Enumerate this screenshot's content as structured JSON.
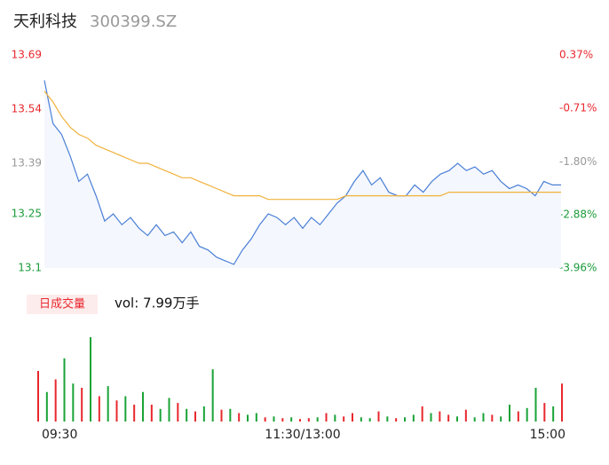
{
  "header": {
    "name": "天利科技",
    "code": "300399.SZ"
  },
  "chart_data": [
    {
      "type": "line",
      "x": [
        0,
        4,
        8,
        12,
        16,
        20,
        24,
        28,
        32,
        36,
        40,
        44,
        48,
        52,
        56,
        60,
        64,
        68,
        72,
        76,
        80,
        84,
        88,
        92,
        96,
        100,
        104,
        108,
        112,
        116,
        120,
        124,
        128,
        132,
        136,
        140,
        144,
        148,
        152,
        156,
        160,
        164,
        168,
        172,
        176,
        180,
        184,
        188,
        192,
        196,
        200,
        204,
        208,
        212,
        216,
        220,
        224,
        228,
        232,
        236,
        240
      ],
      "xlim": [
        0,
        240
      ],
      "xticks": [
        {
          "value": 0,
          "label": "09:30"
        },
        {
          "value": 120,
          "label": "11:30/13:00"
        },
        {
          "value": 240,
          "label": "15:00"
        }
      ],
      "ylim": [
        13.1,
        13.69
      ],
      "yticks": [
        13.69,
        13.54,
        13.39,
        13.25,
        13.1
      ],
      "ytick_colors": [
        "#e8282e",
        "#e8282e",
        "#999999",
        "#1a9b3a",
        "#1a9b3a"
      ],
      "y2lim": [
        -3.96,
        0.37
      ],
      "y2ticks": [
        {
          "value": 0.37,
          "label": "0.37%"
        },
        {
          "value": -0.71,
          "label": "-0.71%"
        },
        {
          "value": -1.8,
          "label": "-1.80%"
        },
        {
          "value": -2.88,
          "label": "-2.88%"
        },
        {
          "value": -3.96,
          "label": "-3.96%"
        }
      ],
      "y2tick_colors": [
        "#e8282e",
        "#e8282e",
        "#999999",
        "#1a9b3a",
        "#1a9b3a"
      ],
      "series": [
        {
          "color": "#4a7fd6",
          "area": "#f4f7fd",
          "values": [
            13.62,
            13.5,
            13.47,
            13.41,
            13.34,
            13.36,
            13.3,
            13.23,
            13.25,
            13.22,
            13.24,
            13.21,
            13.19,
            13.22,
            13.19,
            13.2,
            13.17,
            13.2,
            13.16,
            13.15,
            13.13,
            13.12,
            13.11,
            13.15,
            13.18,
            13.22,
            13.25,
            13.24,
            13.22,
            13.24,
            13.21,
            13.24,
            13.22,
            13.25,
            13.28,
            13.3,
            13.34,
            13.37,
            13.33,
            13.35,
            13.31,
            13.3,
            13.3,
            13.33,
            13.31,
            13.34,
            13.36,
            13.37,
            13.39,
            13.37,
            13.38,
            13.36,
            13.37,
            13.34,
            13.32,
            13.33,
            13.32,
            13.3,
            13.34,
            13.33,
            13.33
          ]
        },
        {
          "color": "#f0b23c",
          "values": [
            13.59,
            13.56,
            13.52,
            13.49,
            13.47,
            13.46,
            13.44,
            13.43,
            13.42,
            13.41,
            13.4,
            13.39,
            13.39,
            13.38,
            13.37,
            13.36,
            13.35,
            13.35,
            13.34,
            13.33,
            13.32,
            13.31,
            13.3,
            13.3,
            13.3,
            13.3,
            13.29,
            13.29,
            13.29,
            13.29,
            13.29,
            13.29,
            13.29,
            13.29,
            13.29,
            13.3,
            13.3,
            13.3,
            13.3,
            13.3,
            13.3,
            13.3,
            13.3,
            13.3,
            13.3,
            13.3,
            13.3,
            13.31,
            13.31,
            13.31,
            13.31,
            13.31,
            13.31,
            13.31,
            13.31,
            13.31,
            13.31,
            13.31,
            13.31,
            13.31,
            13.31
          ]
        }
      ]
    },
    {
      "type": "bar",
      "title": "日成交量",
      "subtitle": "vol: 7.99万手",
      "x": [
        0,
        4,
        8,
        12,
        16,
        20,
        24,
        28,
        32,
        36,
        40,
        44,
        48,
        52,
        56,
        60,
        64,
        68,
        72,
        76,
        80,
        84,
        88,
        92,
        96,
        100,
        104,
        108,
        112,
        116,
        120,
        124,
        128,
        132,
        136,
        140,
        144,
        148,
        152,
        156,
        160,
        164,
        168,
        172,
        176,
        180,
        184,
        188,
        192,
        196,
        200,
        204,
        208,
        212,
        216,
        220,
        224,
        228,
        232,
        236,
        240
      ],
      "xlim": [
        0,
        240
      ],
      "ylim": [
        0,
        100
      ],
      "values": [
        60,
        35,
        50,
        75,
        45,
        40,
        100,
        30,
        42,
        25,
        30,
        20,
        35,
        20,
        15,
        28,
        22,
        15,
        12,
        18,
        62,
        14,
        15,
        10,
        8,
        10,
        5,
        6,
        4,
        5,
        3,
        4,
        5,
        10,
        8,
        6,
        10,
        5,
        4,
        12,
        6,
        4,
        5,
        8,
        18,
        10,
        12,
        8,
        6,
        14,
        5,
        10,
        8,
        6,
        20,
        12,
        16,
        40,
        22,
        18,
        45
      ],
      "colors": [
        "#e8282e",
        "#1aa336",
        "#e8282e",
        "#1aa336",
        "#1aa336",
        "#e8282e",
        "#1aa336",
        "#e8282e",
        "#1aa336",
        "#e8282e",
        "#1aa336",
        "#e8282e",
        "#1aa336",
        "#e8282e",
        "#1aa336",
        "#1aa336",
        "#e8282e",
        "#1aa336",
        "#e8282e",
        "#1aa336",
        "#1aa336",
        "#e8282e",
        "#1aa336",
        "#e8282e",
        "#1aa336",
        "#1aa336",
        "#e8282e",
        "#1aa336",
        "#e8282e",
        "#1aa336",
        "#e8282e",
        "#e8282e",
        "#1aa336",
        "#e8282e",
        "#1aa336",
        "#e8282e",
        "#e8282e",
        "#1aa336",
        "#1aa336",
        "#e8282e",
        "#1aa336",
        "#e8282e",
        "#1aa336",
        "#1aa336",
        "#e8282e",
        "#1aa336",
        "#e8282e",
        "#e8282e",
        "#1aa336",
        "#e8282e",
        "#1aa336",
        "#1aa336",
        "#e8282e",
        "#1aa336",
        "#1aa336",
        "#e8282e",
        "#1aa336",
        "#1aa336",
        "#e8282e",
        "#1aa336",
        "#e8282e"
      ]
    }
  ]
}
